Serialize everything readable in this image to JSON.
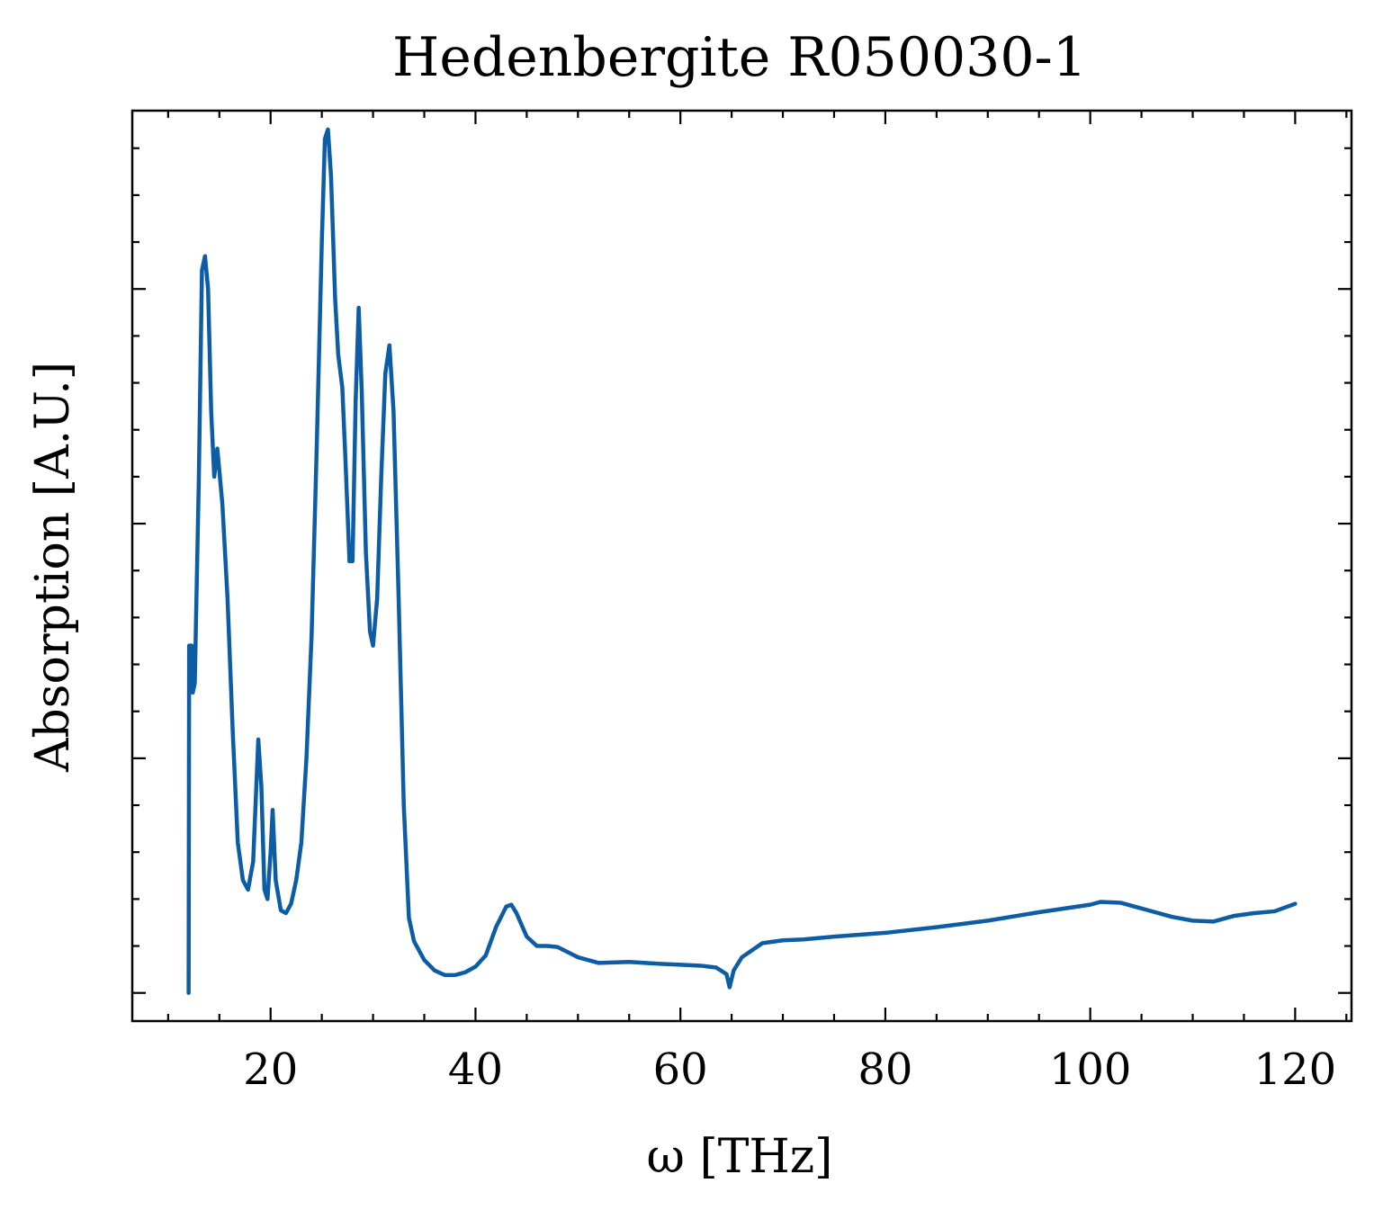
{
  "chart_data": {
    "type": "line",
    "title": "Hedenbergite R050030-1",
    "xlabel": "ω [THz]",
    "ylabel": "Absorption [A.U.]",
    "xlim": [
      6.5,
      125.5
    ],
    "ylim": [
      -0.03,
      0.94
    ],
    "x_major_ticks": [
      20,
      40,
      60,
      80,
      100,
      120
    ],
    "x_minor_step": 5,
    "y_major_ticks": [
      0.0,
      0.25,
      0.5,
      0.75
    ],
    "y_minor_step": 0.05,
    "y_tick_labels_shown": false,
    "grid": false,
    "line_color": "#0c5da5",
    "series": [
      {
        "points": [
          [
            12.0,
            0.0
          ],
          [
            12.05,
            0.37
          ],
          [
            12.3,
            0.37
          ],
          [
            12.4,
            0.32
          ],
          [
            12.6,
            0.33
          ],
          [
            13.0,
            0.55
          ],
          [
            13.3,
            0.77
          ],
          [
            13.6,
            0.785
          ],
          [
            13.9,
            0.75
          ],
          [
            14.2,
            0.62
          ],
          [
            14.5,
            0.55
          ],
          [
            14.8,
            0.58
          ],
          [
            15.3,
            0.52
          ],
          [
            15.8,
            0.42
          ],
          [
            16.3,
            0.28
          ],
          [
            16.8,
            0.16
          ],
          [
            17.3,
            0.12
          ],
          [
            17.8,
            0.11
          ],
          [
            18.3,
            0.14
          ],
          [
            18.8,
            0.27
          ],
          [
            19.1,
            0.22
          ],
          [
            19.4,
            0.11
          ],
          [
            19.7,
            0.1
          ],
          [
            20.0,
            0.15
          ],
          [
            20.2,
            0.195
          ],
          [
            20.5,
            0.12
          ],
          [
            21.0,
            0.088
          ],
          [
            21.5,
            0.085
          ],
          [
            22.0,
            0.095
          ],
          [
            22.5,
            0.12
          ],
          [
            23.0,
            0.16
          ],
          [
            23.5,
            0.25
          ],
          [
            24.0,
            0.38
          ],
          [
            24.5,
            0.58
          ],
          [
            25.0,
            0.8
          ],
          [
            25.3,
            0.91
          ],
          [
            25.6,
            0.92
          ],
          [
            25.9,
            0.87
          ],
          [
            26.3,
            0.74
          ],
          [
            26.6,
            0.68
          ],
          [
            27.0,
            0.645
          ],
          [
            27.3,
            0.57
          ],
          [
            27.7,
            0.46
          ],
          [
            28.0,
            0.46
          ],
          [
            28.3,
            0.63
          ],
          [
            28.6,
            0.73
          ],
          [
            28.9,
            0.64
          ],
          [
            29.3,
            0.47
          ],
          [
            29.7,
            0.385
          ],
          [
            30.0,
            0.37
          ],
          [
            30.4,
            0.42
          ],
          [
            30.8,
            0.55
          ],
          [
            31.2,
            0.66
          ],
          [
            31.6,
            0.69
          ],
          [
            32.0,
            0.62
          ],
          [
            32.5,
            0.42
          ],
          [
            33.0,
            0.2
          ],
          [
            33.5,
            0.08
          ],
          [
            34.0,
            0.055
          ],
          [
            35.0,
            0.035
          ],
          [
            36.0,
            0.024
          ],
          [
            37.0,
            0.019
          ],
          [
            38.0,
            0.019
          ],
          [
            39.0,
            0.022
          ],
          [
            40.0,
            0.028
          ],
          [
            41.0,
            0.04
          ],
          [
            42.0,
            0.07
          ],
          [
            43.0,
            0.092
          ],
          [
            43.5,
            0.094
          ],
          [
            44.0,
            0.085
          ],
          [
            45.0,
            0.06
          ],
          [
            46.0,
            0.05
          ],
          [
            47.0,
            0.05
          ],
          [
            48.0,
            0.049
          ],
          [
            50.0,
            0.038
          ],
          [
            52.0,
            0.032
          ],
          [
            55.0,
            0.033
          ],
          [
            58.0,
            0.031
          ],
          [
            60.0,
            0.03
          ],
          [
            62.0,
            0.029
          ],
          [
            63.5,
            0.027
          ],
          [
            64.5,
            0.02
          ],
          [
            64.8,
            0.006
          ],
          [
            65.2,
            0.024
          ],
          [
            66.0,
            0.038
          ],
          [
            68.0,
            0.053
          ],
          [
            70.0,
            0.056
          ],
          [
            72.0,
            0.057
          ],
          [
            75.0,
            0.06
          ],
          [
            80.0,
            0.064
          ],
          [
            85.0,
            0.07
          ],
          [
            90.0,
            0.077
          ],
          [
            95.0,
            0.086
          ],
          [
            100.0,
            0.094
          ],
          [
            101.0,
            0.097
          ],
          [
            103.0,
            0.096
          ],
          [
            105.0,
            0.09
          ],
          [
            108.0,
            0.081
          ],
          [
            110.0,
            0.077
          ],
          [
            112.0,
            0.076
          ],
          [
            114.0,
            0.082
          ],
          [
            116.0,
            0.085
          ],
          [
            118.0,
            0.087
          ],
          [
            120.0,
            0.095
          ]
        ]
      }
    ]
  }
}
